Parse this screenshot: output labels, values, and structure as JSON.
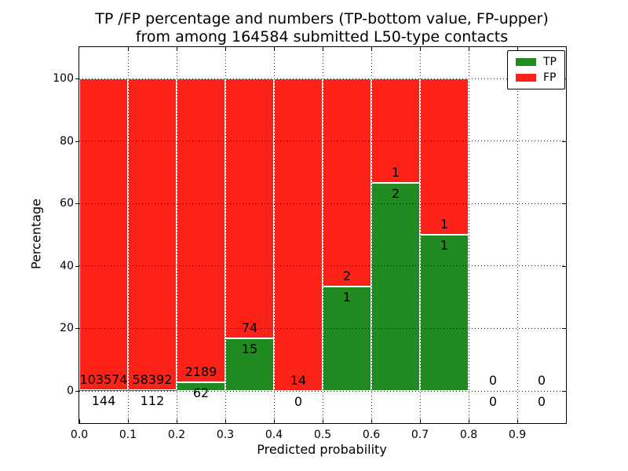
{
  "title": {
    "line1": "TP /FP percentage and numbers (TP-bottom value, FP-upper)",
    "line2": "from among 164584 submitted L50-type contacts"
  },
  "axes": {
    "xlabel": "Predicted probability",
    "ylabel": "Percentage",
    "x_tick_labels": [
      "0.0",
      "0.1",
      "0.2",
      "0.3",
      "0.4",
      "0.5",
      "0.6",
      "0.7",
      "0.8",
      "0.9"
    ],
    "y_tick_labels": [
      "0",
      "20",
      "40",
      "60",
      "80",
      "100"
    ],
    "y_tick_values": [
      0,
      20,
      40,
      60,
      80,
      100
    ],
    "xlim": [
      0.0,
      1.0
    ],
    "ylim": [
      -10.3,
      110.1
    ],
    "grid": "dotted black, on all x ticks and y ticks"
  },
  "legend": {
    "position": "upper right",
    "items": [
      {
        "label": "TP",
        "color": "#218A21"
      },
      {
        "label": "FP",
        "color": "#FC2217"
      }
    ]
  },
  "chart_data": {
    "type": "bar",
    "stacked": true,
    "description": "Each 0.1-wide bin stacked to 100%: green = TP share, red = FP share. Number above green/red boundary = FP count, number below = TP count.",
    "total_submitted": 164584,
    "bin_width": 0.1,
    "bin_starts": [
      0.0,
      0.1,
      0.2,
      0.3,
      0.4,
      0.5,
      0.6,
      0.7,
      0.8,
      0.9
    ],
    "categories": [
      "0.0-0.1",
      "0.1-0.2",
      "0.2-0.3",
      "0.3-0.4",
      "0.4-0.5",
      "0.5-0.6",
      "0.6-0.7",
      "0.7-0.8",
      "0.8-0.9",
      "0.9-1.0"
    ],
    "series": [
      {
        "name": "TP",
        "color": "#218A21",
        "counts": [
          144,
          112,
          62,
          15,
          0,
          1,
          2,
          1,
          0,
          0
        ]
      },
      {
        "name": "FP",
        "color": "#FC2217",
        "counts": [
          103574,
          58392,
          2189,
          74,
          14,
          2,
          1,
          1,
          0,
          0
        ]
      }
    ],
    "tp_percent_of_bin": [
      0.14,
      0.19,
      2.75,
      16.85,
      0.0,
      33.33,
      66.67,
      50.0,
      null,
      null
    ]
  }
}
